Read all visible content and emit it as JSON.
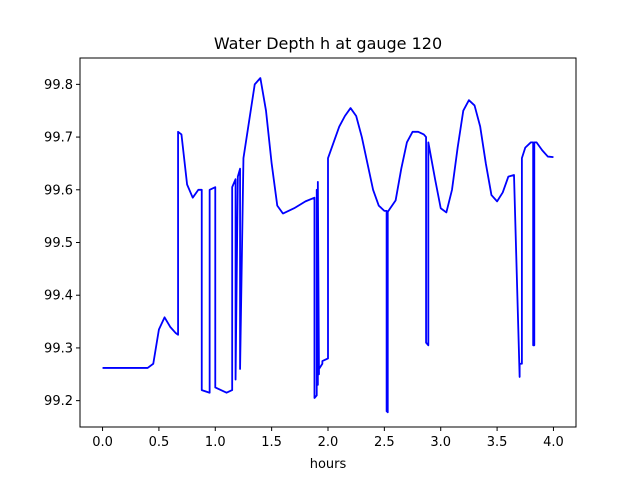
{
  "chart_data": {
    "type": "line",
    "title": "Water Depth h at gauge 120",
    "xlabel": "hours",
    "ylabel": "",
    "xlim": [
      -0.2,
      4.2
    ],
    "ylim": [
      99.15,
      99.85
    ],
    "xticks": [
      0.0,
      0.5,
      1.0,
      1.5,
      2.0,
      2.5,
      3.0,
      3.5,
      4.0
    ],
    "xtick_labels": [
      "0.0",
      "0.5",
      "1.0",
      "1.5",
      "2.0",
      "2.5",
      "3.0",
      "3.5",
      "4.0"
    ],
    "yticks": [
      99.2,
      99.3,
      99.4,
      99.5,
      99.6,
      99.7,
      99.8
    ],
    "ytick_labels": [
      "99.2",
      "99.3",
      "99.4",
      "99.5",
      "99.6",
      "99.7",
      "99.8"
    ],
    "grid": false,
    "series": [
      {
        "color": "#0000ff",
        "x": [
          0.0,
          0.2,
          0.4,
          0.45,
          0.5,
          0.55,
          0.6,
          0.65,
          0.67,
          0.67,
          0.7,
          0.75,
          0.8,
          0.85,
          0.88,
          0.88,
          0.95,
          0.95,
          1.0,
          1.0,
          1.1,
          1.15,
          1.15,
          1.18,
          1.18,
          1.2,
          1.2,
          1.22,
          1.22,
          1.25,
          1.25,
          1.3,
          1.35,
          1.4,
          1.45,
          1.5,
          1.55,
          1.6,
          1.7,
          1.8,
          1.88,
          1.88,
          1.9,
          1.9,
          1.91,
          1.91,
          1.92,
          1.92,
          1.95,
          1.95,
          2.0,
          2.0,
          2.05,
          2.1,
          2.15,
          2.2,
          2.25,
          2.3,
          2.35,
          2.4,
          2.45,
          2.5,
          2.52,
          2.52,
          2.53,
          2.53,
          2.6,
          2.65,
          2.7,
          2.75,
          2.8,
          2.85,
          2.87,
          2.87,
          2.89,
          2.89,
          2.95,
          3.0,
          3.05,
          3.1,
          3.15,
          3.2,
          3.25,
          3.3,
          3.35,
          3.4,
          3.45,
          3.5,
          3.55,
          3.6,
          3.65,
          3.7,
          3.7,
          3.72,
          3.72,
          3.75,
          3.8,
          3.82,
          3.82,
          3.83,
          3.83,
          3.85,
          3.9,
          3.95,
          4.0
        ],
        "y": [
          99.262,
          99.262,
          99.262,
          99.27,
          99.335,
          99.358,
          99.34,
          99.328,
          99.325,
          99.71,
          99.705,
          99.61,
          99.585,
          99.6,
          99.6,
          99.22,
          99.215,
          99.6,
          99.605,
          99.225,
          99.215,
          99.22,
          99.605,
          99.62,
          99.24,
          99.625,
          99.625,
          99.64,
          99.26,
          99.66,
          99.66,
          99.73,
          99.8,
          99.812,
          99.75,
          99.65,
          99.57,
          99.555,
          99.565,
          99.578,
          99.585,
          99.205,
          99.21,
          99.6,
          99.23,
          99.615,
          99.25,
          99.26,
          99.27,
          99.275,
          99.28,
          99.66,
          99.69,
          99.72,
          99.74,
          99.755,
          99.74,
          99.7,
          99.65,
          99.6,
          99.57,
          99.56,
          99.56,
          99.18,
          99.178,
          99.558,
          99.58,
          99.64,
          99.69,
          99.71,
          99.71,
          99.705,
          99.7,
          99.31,
          99.305,
          99.69,
          99.62,
          99.565,
          99.557,
          99.6,
          99.68,
          99.75,
          99.77,
          99.76,
          99.72,
          99.65,
          99.59,
          99.578,
          99.595,
          99.625,
          99.628,
          99.245,
          99.27,
          99.27,
          99.66,
          99.68,
          99.69,
          99.69,
          99.305,
          99.305,
          99.69,
          99.69,
          99.675,
          99.663,
          99.662
        ]
      }
    ]
  }
}
